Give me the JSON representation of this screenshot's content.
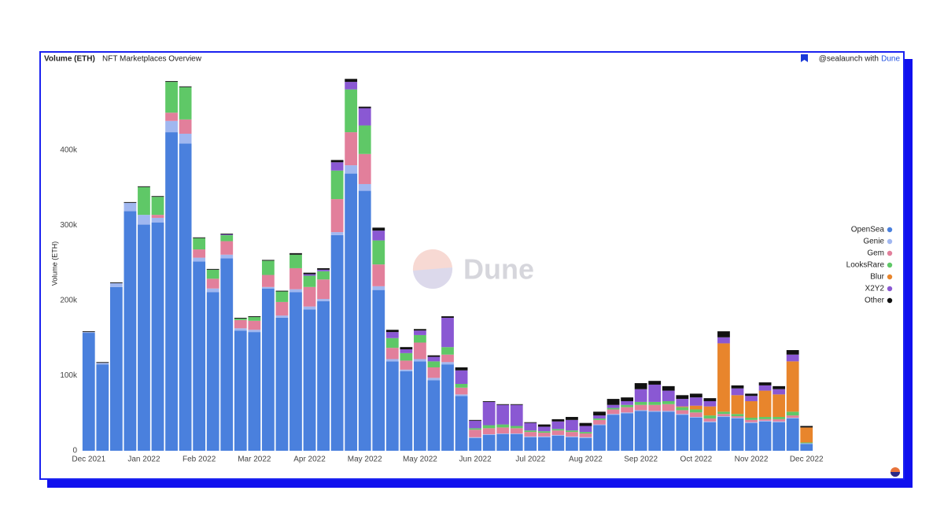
{
  "chart_data": {
    "type": "stacked_bar",
    "title": "Volume (ETH)",
    "subtitle": "NFT Marketplaces Overview",
    "credit": "@sealaunch with",
    "credit_brand": "Dune",
    "watermark": "Dune",
    "ylabel": "Volume (ETH)",
    "ylim": [
      0,
      500000
    ],
    "yticks": [
      0,
      {
        "value": 100000,
        "label": "100k"
      },
      {
        "value": 200000,
        "label": "200k"
      },
      {
        "value": 300000,
        "label": "300k"
      },
      {
        "value": 400000,
        "label": "400k"
      }
    ],
    "grid": false,
    "legend": "right",
    "categories": [
      "Dec 2021",
      null,
      null,
      null,
      "Jan 2022",
      null,
      null,
      null,
      "Feb 2022",
      null,
      null,
      null,
      "Mar 2022",
      null,
      null,
      null,
      "Apr 2022",
      null,
      null,
      null,
      "May 2022",
      null,
      null,
      null,
      "May 2022",
      null,
      null,
      null,
      "Jun 2022",
      null,
      null,
      null,
      "Jul 2022",
      null,
      null,
      null,
      "Aug 2022",
      null,
      null,
      null,
      "Sep 2022",
      null,
      null,
      null,
      "Oct 2022",
      null,
      null,
      null,
      "Nov 2022",
      null,
      null,
      null,
      "Dec 2022"
    ],
    "series": [
      {
        "name": "OpenSea",
        "color": "#4a80dd",
        "values": [
          157000,
          115000,
          218000,
          319000,
          301000,
          304000,
          424000,
          409000,
          252000,
          211000,
          256000,
          160000,
          158000,
          216000,
          177000,
          211000,
          188000,
          199000,
          287000,
          369000,
          346000,
          214000,
          119000,
          106000,
          119000,
          94000,
          115000,
          73000,
          17000,
          21000,
          22000,
          22000,
          18000,
          18000,
          20000,
          18000,
          17000,
          34000,
          48000,
          50000,
          53000,
          52000,
          52000,
          48000,
          44000,
          38000,
          45000,
          43000,
          37000,
          39000,
          38000,
          43000,
          9000
        ]
      },
      {
        "name": "Genie",
        "color": "#a0b7f0",
        "values": [
          1000,
          2000,
          5000,
          11000,
          13000,
          6000,
          15000,
          13000,
          5000,
          5000,
          5000,
          3000,
          3000,
          2000,
          3000,
          4000,
          4000,
          3000,
          4000,
          11000,
          9000,
          5000,
          3000,
          2000,
          3000,
          3000,
          3000,
          2000,
          1000,
          1000,
          1000,
          1000,
          1000,
          1000,
          1000,
          1000,
          1000,
          1000,
          1000,
          1000,
          1000,
          1000,
          1000,
          1000,
          1000,
          1000,
          1000,
          1000,
          1000,
          1000,
          1000,
          1000,
          1000
        ]
      },
      {
        "name": "Gem",
        "color": "#e27f9b",
        "values": [
          0,
          0,
          0,
          0,
          0,
          4000,
          11000,
          19000,
          11000,
          13000,
          18000,
          11000,
          12000,
          16000,
          18000,
          28000,
          26000,
          26000,
          44000,
          44000,
          40000,
          29000,
          15000,
          12000,
          22000,
          14000,
          10000,
          9000,
          10000,
          8000,
          8000,
          7000,
          6000,
          5000,
          6000,
          6000,
          5000,
          6000,
          6000,
          7000,
          7000,
          8000,
          9000,
          5000,
          6000,
          4000,
          3000,
          2000,
          3000,
          2000,
          3000,
          3000,
          0
        ]
      },
      {
        "name": "LooksRare",
        "color": "#5fc867",
        "values": [
          0,
          0,
          0,
          0,
          37000,
          24000,
          41000,
          43000,
          15000,
          12000,
          8000,
          2000,
          5000,
          19000,
          14000,
          18000,
          15000,
          11000,
          38000,
          57000,
          38000,
          32000,
          13000,
          10000,
          10000,
          8000,
          10000,
          5000,
          2000,
          4000,
          4000,
          3000,
          2000,
          2000,
          2000,
          2000,
          2000,
          2000,
          2000,
          3000,
          4000,
          4000,
          4000,
          4000,
          4000,
          4000,
          3000,
          3000,
          3000,
          3000,
          3000,
          5000,
          1000
        ]
      },
      {
        "name": "Blur",
        "color": "#e8852c",
        "values": [
          0,
          0,
          0,
          0,
          0,
          0,
          0,
          0,
          0,
          0,
          0,
          0,
          0,
          0,
          0,
          0,
          0,
          0,
          0,
          0,
          0,
          0,
          0,
          0,
          0,
          0,
          0,
          0,
          0,
          0,
          0,
          0,
          0,
          0,
          0,
          0,
          0,
          0,
          0,
          0,
          0,
          0,
          0,
          1000,
          5000,
          12000,
          91000,
          25000,
          22000,
          35000,
          30000,
          67000,
          20000
        ]
      },
      {
        "name": "X2Y2",
        "color": "#8a58d3",
        "values": [
          0,
          0,
          0,
          0,
          0,
          0,
          0,
          0,
          0,
          0,
          1000,
          0,
          0,
          0,
          0,
          0,
          2000,
          2000,
          11000,
          10000,
          23000,
          13000,
          8000,
          5000,
          6000,
          6000,
          39000,
          18000,
          10000,
          31000,
          26000,
          28000,
          10000,
          6000,
          10000,
          14000,
          8000,
          4000,
          4000,
          5000,
          17000,
          23000,
          14000,
          10000,
          11000,
          7000,
          8000,
          9000,
          7000,
          7000,
          7000,
          9000,
          0
        ]
      },
      {
        "name": "Other",
        "color": "#111111",
        "values": [
          1000,
          1000,
          1000,
          1000,
          1000,
          1000,
          1000,
          1000,
          1000,
          1000,
          1000,
          1000,
          1000,
          1000,
          1000,
          2000,
          2000,
          2000,
          3000,
          4000,
          2000,
          4000,
          3000,
          3000,
          2000,
          2000,
          2000,
          4000,
          1000,
          1000,
          1000,
          1000,
          1000,
          3000,
          3000,
          4000,
          4000,
          5000,
          8000,
          5000,
          8000,
          5000,
          6000,
          5000,
          5000,
          4000,
          8000,
          4000,
          3000,
          4000,
          4000,
          6000,
          2000
        ]
      }
    ]
  }
}
